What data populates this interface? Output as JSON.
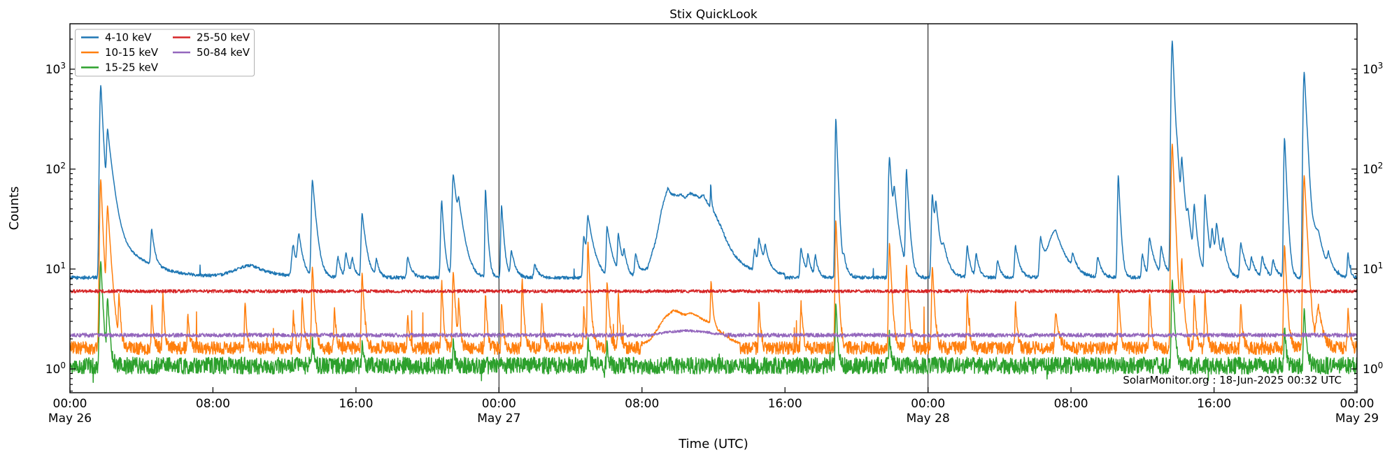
{
  "chart_data": {
    "type": "line",
    "title": "Stix QuickLook",
    "xlabel": "Time (UTC)",
    "ylabel": "Counts",
    "annotation": "SolarMonitor.org : 18-Jun-2025 00:32 UTC",
    "x_axis": {
      "unit": "hours since 2025-05-26 00:00 UTC",
      "range": [
        0,
        72
      ],
      "ticks": [
        {
          "t": 0,
          "label": "00:00",
          "day": "May 26"
        },
        {
          "t": 8,
          "label": "08:00"
        },
        {
          "t": 16,
          "label": "16:00"
        },
        {
          "t": 24,
          "label": "00:00",
          "day": "May 27"
        },
        {
          "t": 32,
          "label": "08:00"
        },
        {
          "t": 40,
          "label": "16:00"
        },
        {
          "t": 48,
          "label": "00:00",
          "day": "May 28"
        },
        {
          "t": 56,
          "label": "08:00"
        },
        {
          "t": 64,
          "label": "16:00"
        },
        {
          "t": 72,
          "label": "00:00",
          "day": "May 29"
        }
      ],
      "day_boundary_lines_t": [
        24,
        48
      ]
    },
    "y_axis": {
      "scale": "log",
      "limits": [
        0.58,
        2840
      ],
      "major_ticks": [
        1,
        10,
        100,
        1000
      ],
      "major_tick_exponents": [
        0,
        1,
        2,
        3
      ],
      "labels_on_both_sides": true
    },
    "legend": {
      "position": "upper-left",
      "columns": 2
    },
    "series": [
      {
        "name": "4-10 keV",
        "color": "#1f77b4",
        "baseline": 8.2,
        "noise_dex": 0.017,
        "up_prob": 0.003,
        "up_max": 1.35,
        "spikes": [
          [
            1.73,
            690,
            0.05,
            0.12
          ],
          [
            2.11,
            210,
            0.05,
            0.25
          ],
          [
            2.45,
            12,
            0.3,
            1.5
          ],
          [
            4.58,
            14,
            0.05,
            0.15
          ],
          [
            10.2,
            2.6,
            0.9,
            1.1
          ],
          [
            12.5,
            9,
            0.08,
            0.15
          ],
          [
            12.82,
            13,
            0.08,
            0.2
          ],
          [
            13.57,
            70,
            0.05,
            0.18
          ],
          [
            15.0,
            5,
            0.06,
            0.15
          ],
          [
            15.45,
            6,
            0.06,
            0.15
          ],
          [
            15.8,
            4,
            0.06,
            0.15
          ],
          [
            16.35,
            28,
            0.05,
            0.2
          ],
          [
            17.15,
            4,
            0.05,
            0.15
          ],
          [
            18.9,
            5,
            0.05,
            0.2
          ],
          [
            20.8,
            40,
            0.05,
            0.12
          ],
          [
            21.45,
            80,
            0.06,
            0.25
          ],
          [
            21.75,
            20,
            0.05,
            0.3
          ],
          [
            23.25,
            56,
            0.03,
            0.1
          ],
          [
            24.15,
            36,
            0.04,
            0.12
          ],
          [
            24.7,
            7,
            0.05,
            0.2
          ],
          [
            26.0,
            3,
            0.05,
            0.2
          ],
          [
            28.75,
            13,
            0.05,
            0.25
          ],
          [
            28.98,
            21,
            0.05,
            0.3
          ],
          [
            30.05,
            18,
            0.04,
            0.25
          ],
          [
            30.68,
            13,
            0.04,
            0.2
          ],
          [
            31.0,
            5,
            0.04,
            0.15
          ],
          [
            31.65,
            6,
            0.05,
            0.2
          ],
          [
            35.85,
            32,
            0.02,
            0.04
          ],
          [
            38.3,
            6,
            0.05,
            0.2
          ],
          [
            38.55,
            9,
            0.05,
            0.25
          ],
          [
            38.9,
            6,
            0.05,
            0.2
          ],
          [
            40.9,
            8,
            0.05,
            0.2
          ],
          [
            41.3,
            5,
            0.05,
            0.15
          ],
          [
            41.7,
            5,
            0.05,
            0.15
          ],
          [
            42.85,
            320,
            0.035,
            0.09
          ],
          [
            43.3,
            4,
            0.05,
            0.2
          ],
          [
            45.85,
            125,
            0.05,
            0.15
          ],
          [
            46.12,
            38,
            0.05,
            0.25
          ],
          [
            46.8,
            88,
            0.04,
            0.12
          ],
          [
            48.25,
            48,
            0.05,
            0.15
          ],
          [
            48.45,
            27,
            0.05,
            0.2
          ],
          [
            48.9,
            6,
            0.1,
            0.3
          ],
          [
            50.2,
            9,
            0.05,
            0.15
          ],
          [
            50.7,
            6,
            0.05,
            0.15
          ],
          [
            51.9,
            4,
            0.05,
            0.15
          ],
          [
            52.9,
            9,
            0.05,
            0.2
          ],
          [
            54.3,
            12,
            0.05,
            0.2
          ],
          [
            55.15,
            16,
            0.35,
            0.5
          ],
          [
            56.1,
            4,
            0.05,
            0.2
          ],
          [
            57.5,
            5,
            0.05,
            0.2
          ],
          [
            58.65,
            80,
            0.04,
            0.1
          ],
          [
            60.0,
            6,
            0.05,
            0.15
          ],
          [
            60.4,
            12,
            0.06,
            0.25
          ],
          [
            61.05,
            8,
            0.05,
            0.2
          ],
          [
            61.67,
            1940,
            0.05,
            0.1
          ],
          [
            61.95,
            60,
            0.05,
            0.3
          ],
          [
            62.2,
            88,
            0.04,
            0.15
          ],
          [
            62.55,
            15,
            0.05,
            0.2
          ],
          [
            62.9,
            30,
            0.05,
            0.15
          ],
          [
            63.5,
            46,
            0.04,
            0.15
          ],
          [
            63.9,
            14,
            0.05,
            0.2
          ],
          [
            64.15,
            16,
            0.05,
            0.2
          ],
          [
            64.5,
            9,
            0.05,
            0.2
          ],
          [
            65.5,
            10,
            0.05,
            0.25
          ],
          [
            66.1,
            4,
            0.05,
            0.2
          ],
          [
            66.7,
            5,
            0.05,
            0.2
          ],
          [
            67.3,
            4,
            0.05,
            0.2
          ],
          [
            67.95,
            200,
            0.04,
            0.1
          ],
          [
            69.05,
            940,
            0.05,
            0.12
          ],
          [
            69.6,
            6,
            0.1,
            0.3
          ],
          [
            69.85,
            12,
            0.2,
            0.35
          ],
          [
            70.4,
            4,
            0.05,
            0.2
          ],
          [
            71.5,
            6,
            0.04,
            0.1
          ]
        ],
        "profiles": [
          [
            [
              31.9,
              8.5
            ],
            [
              32.3,
              10
            ],
            [
              32.8,
              20
            ],
            [
              33.1,
              40
            ],
            [
              33.45,
              65
            ],
            [
              33.6,
              57
            ],
            [
              33.9,
              54
            ],
            [
              34.15,
              56
            ],
            [
              34.4,
              52
            ],
            [
              34.7,
              57
            ],
            [
              34.95,
              55
            ],
            [
              35.2,
              52
            ],
            [
              35.45,
              55
            ],
            [
              35.6,
              48
            ],
            [
              36.0,
              38
            ],
            [
              36.4,
              27
            ],
            [
              36.8,
              18
            ],
            [
              37.2,
              13.5
            ],
            [
              37.7,
              11
            ],
            [
              38.2,
              9.8
            ],
            [
              39.0,
              9.2
            ],
            [
              40.0,
              8.8
            ]
          ]
        ]
      },
      {
        "name": "10-15 keV",
        "color": "#ff7f0e",
        "baseline": 1.62,
        "noise_dex": 0.065,
        "up_prob": 0.006,
        "up_max": 2.4,
        "spikes": [
          [
            1.73,
            78,
            0.05,
            0.1
          ],
          [
            2.11,
            40,
            0.05,
            0.15
          ],
          [
            2.75,
            3.5,
            0.03,
            0.08
          ],
          [
            4.58,
            2.5,
            0.03,
            0.08
          ],
          [
            5.2,
            4,
            0.03,
            0.08
          ],
          [
            6.6,
            2,
            0.03,
            0.08
          ],
          [
            9.8,
            3,
            0.03,
            0.08
          ],
          [
            12.5,
            2,
            0.03,
            0.08
          ],
          [
            13.0,
            3.5,
            0.03,
            0.08
          ],
          [
            13.57,
            9,
            0.04,
            0.1
          ],
          [
            14.8,
            2.5,
            0.03,
            0.08
          ],
          [
            16.35,
            7.5,
            0.04,
            0.1
          ],
          [
            18.9,
            2,
            0.03,
            0.08
          ],
          [
            20.8,
            6,
            0.03,
            0.08
          ],
          [
            21.45,
            8,
            0.04,
            0.1
          ],
          [
            21.75,
            3,
            0.03,
            0.08
          ],
          [
            23.25,
            4,
            0.03,
            0.08
          ],
          [
            24.15,
            3,
            0.03,
            0.08
          ],
          [
            25.3,
            6.5,
            0.03,
            0.08
          ],
          [
            26.4,
            3,
            0.03,
            0.08
          ],
          [
            28.75,
            2.5,
            0.03,
            0.08
          ],
          [
            28.98,
            17,
            0.03,
            0.1
          ],
          [
            30.05,
            6,
            0.03,
            0.1
          ],
          [
            30.68,
            4,
            0.03,
            0.08
          ],
          [
            35.87,
            5,
            0.03,
            0.08
          ],
          [
            38.55,
            3,
            0.03,
            0.08
          ],
          [
            40.9,
            3,
            0.03,
            0.08
          ],
          [
            42.85,
            30,
            0.035,
            0.09
          ],
          [
            45.85,
            17,
            0.04,
            0.1
          ],
          [
            46.8,
            9,
            0.04,
            0.1
          ],
          [
            48.25,
            9,
            0.04,
            0.1
          ],
          [
            50.2,
            4,
            0.03,
            0.08
          ],
          [
            52.9,
            3,
            0.03,
            0.08
          ],
          [
            55.15,
            2,
            0.05,
            0.15
          ],
          [
            58.65,
            5,
            0.03,
            0.08
          ],
          [
            60.4,
            4,
            0.03,
            0.08
          ],
          [
            61.67,
            180,
            0.05,
            0.1
          ],
          [
            62.2,
            10,
            0.04,
            0.1
          ],
          [
            62.9,
            4,
            0.03,
            0.08
          ],
          [
            63.5,
            4,
            0.03,
            0.08
          ],
          [
            65.5,
            3,
            0.03,
            0.08
          ],
          [
            67.95,
            16,
            0.04,
            0.1
          ],
          [
            69.05,
            86,
            0.05,
            0.12
          ],
          [
            69.85,
            2.5,
            0.1,
            0.2
          ],
          [
            71.5,
            2.5,
            0.03,
            0.08
          ]
        ],
        "profiles": [
          [
            [
              31.9,
              1.7
            ],
            [
              32.5,
              2.0
            ],
            [
              33.3,
              3.3
            ],
            [
              33.8,
              3.9
            ],
            [
              34.3,
              3.5
            ],
            [
              34.8,
              3.6
            ],
            [
              35.3,
              3.2
            ],
            [
              35.8,
              2.9
            ],
            [
              36.3,
              2.4
            ],
            [
              36.9,
              2.0
            ],
            [
              37.5,
              1.8
            ]
          ]
        ]
      },
      {
        "name": "15-25 keV",
        "color": "#2ca02c",
        "baseline": 1.08,
        "noise_dex": 0.085,
        "up_prob": 0.002,
        "up_max": 1.5,
        "down_prob": 0.004,
        "down_min": 0.55,
        "spikes": [
          [
            1.73,
            11,
            0.05,
            0.1
          ],
          [
            2.11,
            4,
            0.04,
            0.1
          ],
          [
            13.57,
            0.9,
            0.03,
            0.08
          ],
          [
            16.35,
            0.8,
            0.03,
            0.08
          ],
          [
            21.45,
            0.8,
            0.03,
            0.08
          ],
          [
            28.98,
            0.8,
            0.03,
            0.08
          ],
          [
            30.05,
            0.7,
            0.03,
            0.08
          ],
          [
            42.85,
            3.6,
            0.03,
            0.08
          ],
          [
            45.85,
            1.2,
            0.03,
            0.08
          ],
          [
            61.67,
            7,
            0.04,
            0.1
          ],
          [
            67.95,
            1.5,
            0.03,
            0.08
          ],
          [
            69.05,
            2.8,
            0.04,
            0.1
          ]
        ],
        "profiles": []
      },
      {
        "name": "25-50 keV",
        "color": "#d62728",
        "baseline": 6.0,
        "noise_dex": 0.016,
        "spikes": [],
        "profiles": []
      },
      {
        "name": "50-84 keV",
        "color": "#9467bd",
        "baseline": 2.18,
        "noise_dex": 0.02,
        "spikes": [],
        "profiles": [
          [
            [
              32.5,
              2.18
            ],
            [
              33.5,
              2.35
            ],
            [
              34.5,
              2.42
            ],
            [
              35.5,
              2.35
            ],
            [
              36.5,
              2.2
            ]
          ]
        ]
      }
    ]
  }
}
